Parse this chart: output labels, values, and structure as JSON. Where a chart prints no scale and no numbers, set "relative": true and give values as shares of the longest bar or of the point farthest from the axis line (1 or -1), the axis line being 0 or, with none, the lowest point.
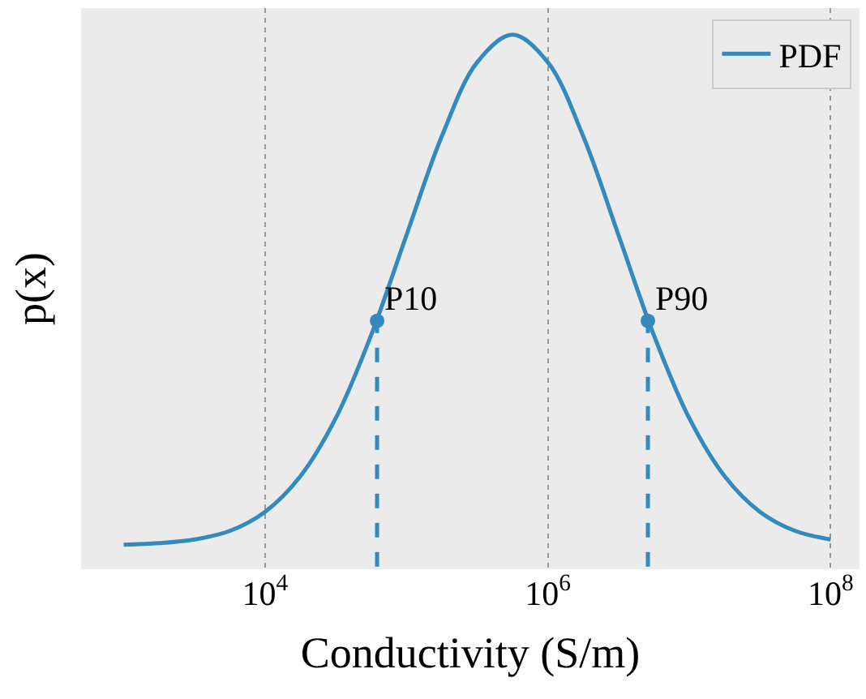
{
  "chart_data": {
    "type": "line",
    "xlabel": "Conductivity (S/m)",
    "ylabel": "p(x)",
    "relative": true,
    "log": "x",
    "xlim": [
      500,
      160000000
    ],
    "xticks": [
      {
        "value": 10000,
        "label": "10$^{4}$"
      },
      {
        "value": 1000000,
        "label": "10$^{6}$"
      },
      {
        "value": 100000000,
        "label": "10$^{8}$"
      }
    ],
    "grid": "x",
    "legend": "top right",
    "series": [
      {
        "name": "PDF",
        "color": "#348abd",
        "x": [
          1000,
          1778,
          3162,
          5623,
          10000,
          17783,
          31623,
          56234,
          100000,
          177828,
          316228,
          562341,
          1000000,
          1778279,
          3162278,
          5623413,
          10000000,
          17782794,
          31622777,
          56234133,
          100000000
        ],
        "values": [
          0.041,
          0.044,
          0.051,
          0.067,
          0.103,
          0.17,
          0.279,
          0.435,
          0.623,
          0.809,
          0.948,
          1,
          0.948,
          0.809,
          0.623,
          0.435,
          0.279,
          0.17,
          0.103,
          0.067,
          0.051
        ]
      },
      {
        "type": "line",
        "line_style": "dashed",
        "color": "#348abd",
        "x": [
          62000,
          62000
        ],
        "values": [
          0,
          0.462
        ]
      },
      {
        "type": "line",
        "line_style": "dashed",
        "color": "#348abd",
        "x": [
          5100000,
          5100000
        ],
        "values": [
          0,
          0.462
        ]
      },
      {
        "type": "scatter",
        "marker": "circle",
        "color": "#348abd",
        "x": [
          62000,
          5100000
        ],
        "values": [
          0.462,
          0.462
        ]
      }
    ],
    "annotations": [
      {
        "text": "P10",
        "x": 62000,
        "y": 0.462
      },
      {
        "text": "P90",
        "x": 5100000,
        "y": 0.462
      }
    ]
  }
}
